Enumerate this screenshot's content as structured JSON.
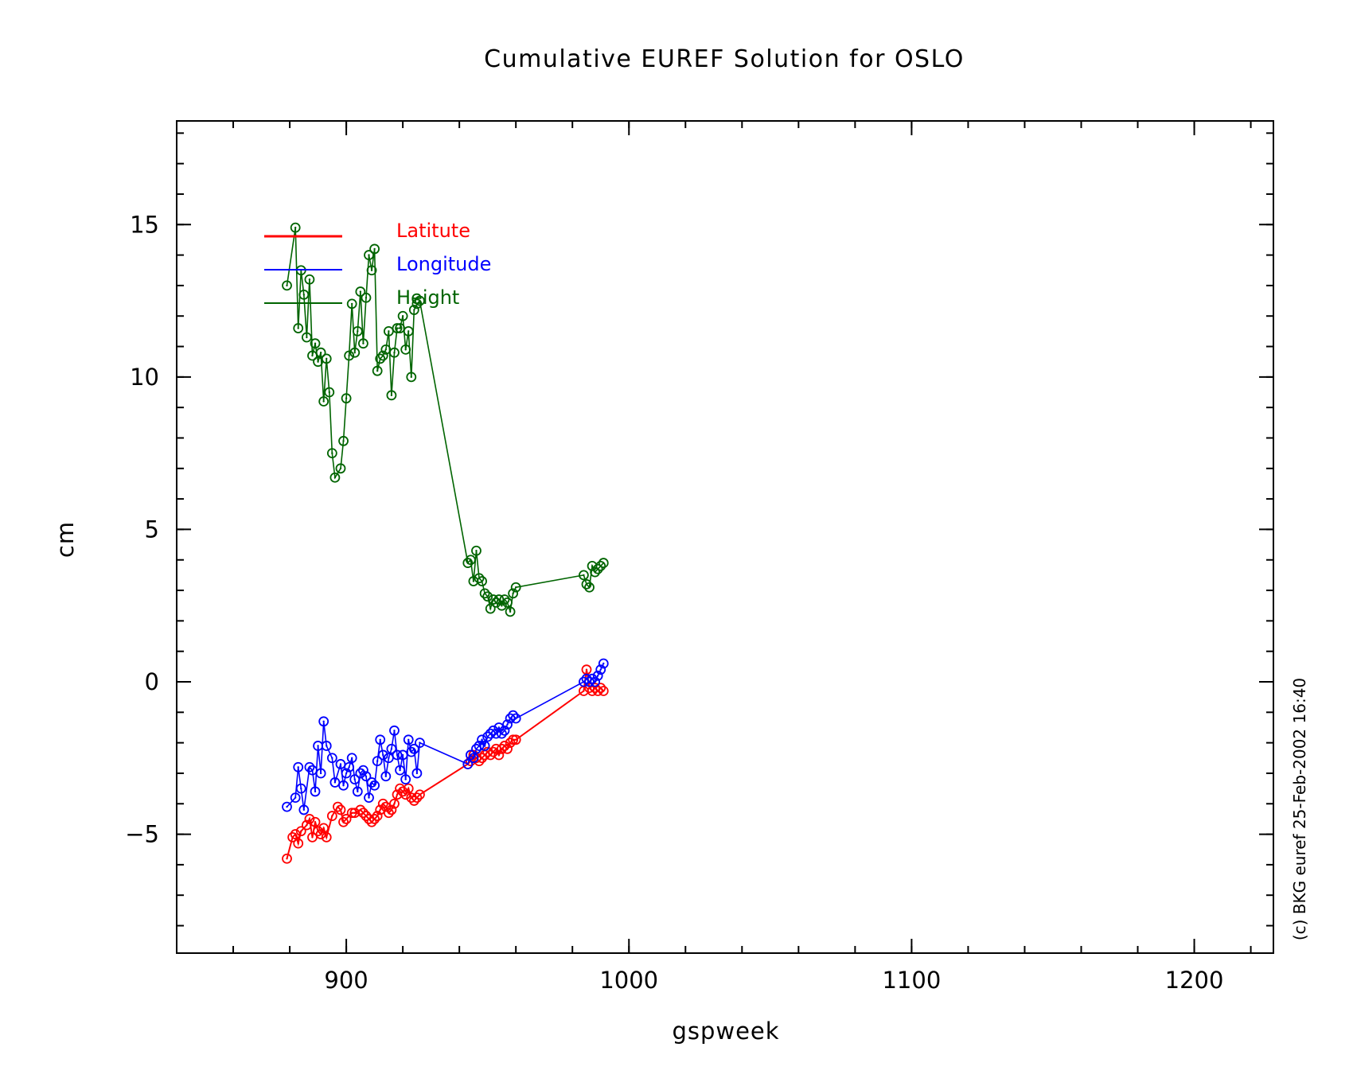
{
  "chart_data": {
    "type": "line",
    "title": "Cumulative EUREF Solution for OSLO",
    "xlabel": "gspweek",
    "ylabel": "cm",
    "xlim": [
      840,
      1228
    ],
    "ylim": [
      -8.9,
      18.4
    ],
    "xticks": [
      900,
      1000,
      1100,
      1200
    ],
    "xtick_labels": [
      "900",
      "1000",
      "1100",
      "1200"
    ],
    "x_minor_step": 20,
    "yticks": [
      -5,
      0,
      5,
      10,
      15
    ],
    "ytick_labels": [
      "−5",
      "0",
      "5",
      "10",
      "15"
    ],
    "y_minor_step": 1,
    "grid": false,
    "legend_position": "top-left",
    "marker": "circle-dot",
    "credit": "(c) BKG euref 25-Feb-2002 16:40",
    "series": [
      {
        "name": "Latitute",
        "color": "#ff0000",
        "x": [
          879,
          881,
          882,
          883,
          884,
          886,
          887,
          888,
          889,
          890,
          891,
          892,
          893,
          895,
          897,
          898,
          899,
          900,
          902,
          903,
          905,
          906,
          907,
          908,
          909,
          910,
          911,
          912,
          913,
          914,
          915,
          916,
          917,
          918,
          919,
          920,
          921,
          922,
          923,
          924,
          925,
          926,
          943,
          944,
          945,
          946,
          947,
          948,
          949,
          950,
          951,
          952,
          953,
          954,
          955,
          956,
          957,
          958,
          959,
          960,
          984,
          985,
          986,
          987,
          988,
          989,
          990,
          991
        ],
        "y": [
          -5.8,
          -5.1,
          -5.0,
          -5.3,
          -4.9,
          -4.7,
          -4.5,
          -5.1,
          -4.6,
          -4.9,
          -5.0,
          -4.8,
          -5.1,
          -4.4,
          -4.1,
          -4.2,
          -4.6,
          -4.5,
          -4.3,
          -4.3,
          -4.2,
          -4.3,
          -4.4,
          -4.5,
          -4.6,
          -4.5,
          -4.4,
          -4.2,
          -4.0,
          -4.1,
          -4.3,
          -4.2,
          -4.0,
          -3.7,
          -3.5,
          -3.6,
          -3.7,
          -3.5,
          -3.8,
          -3.9,
          -3.8,
          -3.7,
          -2.7,
          -2.6,
          -2.4,
          -2.5,
          -2.6,
          -2.5,
          -2.4,
          -2.3,
          -2.4,
          -2.3,
          -2.2,
          -2.4,
          -2.2,
          -2.1,
          -2.2,
          -2.0,
          -1.9,
          -1.9,
          -0.3,
          0.4,
          -0.2,
          -0.3,
          -0.2,
          -0.3,
          -0.2,
          -0.3
        ]
      },
      {
        "name": "Longitude",
        "color": "#0000ff",
        "x": [
          879,
          882,
          883,
          884,
          885,
          887,
          888,
          889,
          890,
          891,
          892,
          893,
          895,
          896,
          898,
          899,
          900,
          901,
          902,
          903,
          904,
          905,
          906,
          907,
          908,
          909,
          910,
          911,
          912,
          913,
          914,
          915,
          916,
          917,
          918,
          919,
          920,
          921,
          922,
          923,
          924,
          925,
          926,
          943,
          944,
          945,
          946,
          947,
          948,
          949,
          950,
          951,
          952,
          953,
          954,
          955,
          956,
          957,
          958,
          959,
          960,
          984,
          985,
          986,
          987,
          988,
          989,
          990,
          991
        ],
        "y": [
          -4.1,
          -3.8,
          -2.8,
          -3.5,
          -4.2,
          -2.8,
          -2.9,
          -3.6,
          -2.1,
          -3.0,
          -1.3,
          -2.1,
          -2.5,
          -3.3,
          -2.7,
          -3.4,
          -3.0,
          -2.8,
          -2.5,
          -3.2,
          -3.6,
          -3.0,
          -2.9,
          -3.1,
          -3.8,
          -3.3,
          -3.4,
          -2.6,
          -1.9,
          -2.4,
          -3.1,
          -2.5,
          -2.2,
          -1.6,
          -2.4,
          -2.9,
          -2.4,
          -3.2,
          -1.9,
          -2.3,
          -2.2,
          -3.0,
          -2.0,
          -2.7,
          -2.4,
          -2.5,
          -2.2,
          -2.1,
          -1.9,
          -2.1,
          -1.8,
          -1.7,
          -1.6,
          -1.7,
          -1.5,
          -1.7,
          -1.6,
          -1.4,
          -1.2,
          -1.1,
          -1.2,
          0.0,
          0.1,
          0.0,
          0.1,
          0.0,
          0.2,
          0.4,
          0.6
        ]
      },
      {
        "name": "Height",
        "color": "#006400",
        "x": [
          879,
          882,
          883,
          884,
          885,
          886,
          887,
          888,
          889,
          890,
          891,
          892,
          893,
          894,
          895,
          896,
          898,
          899,
          900,
          901,
          902,
          903,
          904,
          905,
          906,
          907,
          908,
          909,
          910,
          911,
          912,
          913,
          914,
          915,
          916,
          917,
          918,
          919,
          920,
          921,
          922,
          923,
          924,
          925,
          926,
          943,
          944,
          945,
          946,
          947,
          948,
          949,
          950,
          951,
          952,
          953,
          954,
          955,
          956,
          957,
          958,
          959,
          960,
          984,
          985,
          986,
          987,
          988,
          989,
          990,
          991
        ],
        "y": [
          13.0,
          14.9,
          11.6,
          13.5,
          12.7,
          11.3,
          13.2,
          10.7,
          11.1,
          10.5,
          10.8,
          9.2,
          10.6,
          9.5,
          7.5,
          6.7,
          7.0,
          7.9,
          9.3,
          10.7,
          12.4,
          10.8,
          11.5,
          12.8,
          11.1,
          12.6,
          14.0,
          13.5,
          14.2,
          10.2,
          10.6,
          10.7,
          10.9,
          11.5,
          9.4,
          10.8,
          11.6,
          11.6,
          12.0,
          10.9,
          11.5,
          10.0,
          12.2,
          12.4,
          12.5,
          3.9,
          4.0,
          3.3,
          4.3,
          3.4,
          3.3,
          2.9,
          2.8,
          2.4,
          2.7,
          2.6,
          2.7,
          2.5,
          2.7,
          2.6,
          2.3,
          2.9,
          3.1,
          3.5,
          3.2,
          3.1,
          3.8,
          3.6,
          3.7,
          3.8,
          3.9
        ]
      }
    ]
  }
}
